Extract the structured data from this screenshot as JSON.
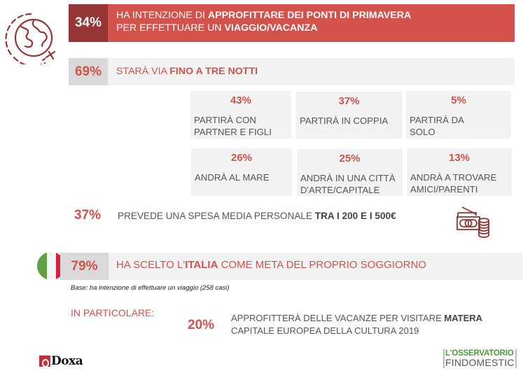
{
  "intro": {
    "percent": "34%",
    "line1_prefix": "HA INTENZIONE DI ",
    "line1_bold": "APPROFITTARE DEI PONTI DI PRIMAVERA",
    "line2_prefix": "PER EFFETTUARE UN ",
    "line2_bold": "VIAGGIO/VACANZA",
    "icon": "globe-plane-icon"
  },
  "duration": {
    "percent": "69%",
    "text_prefix": "STARÀ VIA ",
    "text_bold": "FINO A TRE NOTTI"
  },
  "cards": [
    {
      "percent": "43%",
      "label": "PARTIRÀ CON PARTNER E FIGLI"
    },
    {
      "percent": "37%",
      "label": "PARTIRÀ IN COPPIA"
    },
    {
      "percent": "5%",
      "label": "PARTIRÀ DA SOLO"
    },
    {
      "percent": "26%",
      "label": "ANDRÀ AL MARE"
    },
    {
      "percent": "25%",
      "label": "ANDRÀ IN UNA CITTÀ D'ARTE/CAPITALE"
    },
    {
      "percent": "13%",
      "label": "ANDRÀ A TROVARE AMICI/PARENTI"
    }
  ],
  "spend": {
    "percent": "37%",
    "text_prefix": "PREVEDE UNA SPESA MEDIA PERSONALE ",
    "text_bold": "TRA I 200 E I 500€",
    "icon": "money-coins-icon"
  },
  "italy": {
    "percent": "79%",
    "text_prefix": "HA SCELTO L'",
    "text_bold": "ITALIA",
    "text_suffix": " COME META DEL PROPRIO SOGGIORNO",
    "icon": "italy-flag-icon"
  },
  "base_note": "Base: ha intenzione di effettuare un viaggio (258 casi)",
  "particular": {
    "heading": "IN PARTICOLARE:",
    "percent": "20%",
    "line1_prefix": "APPROFITTERÀ DELLE VACANZE PER VISITARE ",
    "line1_bold": "MATERA",
    "line2": "CAPITALE EUROPEA DELLA CULTURA 2019"
  },
  "logos": {
    "doxa": "Doxa",
    "observatory_top": "L'OSSERVATORIO",
    "observatory_bottom": "FINDOMESTIC"
  },
  "colors": {
    "accent_red": "#d4524c",
    "dark_red": "#953536",
    "panel_gray": "#f2f2f2",
    "pct_gray": "#d9d9d9",
    "logo_green": "#4c9a3e"
  }
}
